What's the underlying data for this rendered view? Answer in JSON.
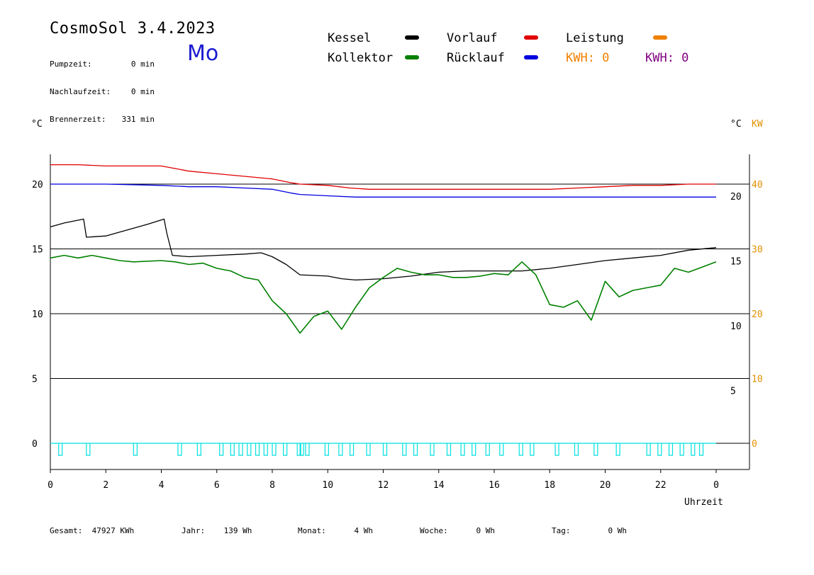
{
  "header": {
    "title": "CosmoSol 3.4.2023",
    "weekday": "Mo",
    "stats": [
      {
        "label": "Pumpzeit:",
        "value": "0 min"
      },
      {
        "label": "Nachlaufzeit:",
        "value": "0 min"
      },
      {
        "label": "Brennerzeit:",
        "value": "331 min"
      }
    ]
  },
  "legend": {
    "kessel": "Kessel",
    "kollektor": "Kollektor",
    "vorlauf": "Vorlauf",
    "ruecklauf": "Rücklauf",
    "leistung": "Leistung",
    "kwh1": "KWH: 0",
    "kwh2": "KWH: 0"
  },
  "colors": {
    "kessel": "#000000",
    "kollektor": "#008000",
    "vorlauf": "#e00000",
    "ruecklauf": "#0000e0",
    "leistung": "#f08000",
    "kwh2": "#800080",
    "pump": "#00e0e0",
    "orange_axis": "#e09000"
  },
  "axis": {
    "left_unit": "°C",
    "right_unit": "°C",
    "right_unit2": "KW",
    "xlabel": "Uhrzeit"
  },
  "footer": {
    "gesamt_label": "Gesamt:",
    "gesamt_value": "47927 KWh",
    "jahr_label": "Jahr:",
    "jahr_value": "139 Wh",
    "monat_label": "Monat:",
    "monat_value": "4 Wh",
    "woche_label": "Woche:",
    "woche_value": "0 Wh",
    "tag_label": "Tag:",
    "tag_value": "0 Wh"
  },
  "chart_data": {
    "type": "line",
    "x_ticks": [
      "0",
      "2",
      "4",
      "6",
      "8",
      "10",
      "12",
      "14",
      "16",
      "18",
      "20",
      "22",
      "0"
    ],
    "y_left_ticks": [
      "0",
      "5",
      "10",
      "15",
      "20"
    ],
    "y_right_ticks": [
      "5",
      "10",
      "15",
      "20"
    ],
    "y_right2_ticks": [
      "0",
      "10",
      "20",
      "30",
      "40"
    ],
    "xlim": [
      0,
      24
    ],
    "ylim": [
      -2,
      23
    ],
    "grid": "horizontal",
    "series": [
      {
        "name": "Vorlauf",
        "color": "#e00000",
        "x": [
          0,
          1,
          2,
          3,
          4,
          4.5,
          5,
          6,
          7,
          8,
          8.7,
          9,
          10,
          10.8,
          11.5,
          12,
          13,
          14,
          15,
          16,
          17,
          18,
          19,
          20,
          21,
          22,
          23,
          24
        ],
        "y": [
          21.5,
          21.5,
          21.4,
          21.4,
          21.4,
          21.2,
          21.0,
          20.8,
          20.6,
          20.4,
          20.1,
          20.0,
          19.9,
          19.7,
          19.6,
          19.6,
          19.6,
          19.6,
          19.6,
          19.6,
          19.6,
          19.6,
          19.7,
          19.8,
          19.9,
          19.9,
          20.0,
          20.0
        ]
      },
      {
        "name": "Rücklauf",
        "color": "#0000e0",
        "x": [
          0,
          2,
          4,
          5,
          6,
          7,
          8,
          8.7,
          9,
          10,
          11,
          12,
          14,
          16,
          18,
          20,
          22,
          24
        ],
        "y": [
          20.0,
          20.0,
          19.9,
          19.8,
          19.8,
          19.7,
          19.6,
          19.3,
          19.2,
          19.1,
          19.0,
          19.0,
          19.0,
          19.0,
          19.0,
          19.0,
          19.0,
          19.0
        ]
      },
      {
        "name": "Kessel",
        "color": "#000000",
        "x": [
          0,
          0.5,
          1.2,
          1.3,
          2,
          2.5,
          3,
          3.5,
          4.1,
          4.2,
          4.4,
          5,
          6,
          7,
          7.6,
          8,
          8.5,
          9,
          10,
          10.5,
          11,
          12,
          13,
          14,
          15,
          16,
          17,
          18,
          19,
          20,
          21,
          22,
          23,
          24
        ],
        "y": [
          16.7,
          17.0,
          17.3,
          15.9,
          16.0,
          16.3,
          16.6,
          16.9,
          17.3,
          16.2,
          14.5,
          14.4,
          14.5,
          14.6,
          14.7,
          14.4,
          13.8,
          13.0,
          12.9,
          12.7,
          12.6,
          12.7,
          12.9,
          13.2,
          13.3,
          13.3,
          13.3,
          13.5,
          13.8,
          14.1,
          14.3,
          14.5,
          14.9,
          15.1
        ]
      },
      {
        "name": "Kollektor",
        "color": "#008000",
        "x": [
          0,
          0.5,
          1,
          1.5,
          2,
          2.5,
          3,
          4,
          4.5,
          5,
          5.5,
          6,
          6.5,
          7,
          7.5,
          8,
          8.5,
          9,
          9.5,
          10,
          10.5,
          11,
          11.5,
          12,
          12.5,
          13,
          13.5,
          14,
          14.5,
          15,
          15.5,
          16,
          16.5,
          17,
          17.5,
          18,
          18.5,
          19,
          19.5,
          20,
          20.5,
          21,
          21.5,
          22,
          22.5,
          23,
          23.5,
          24
        ],
        "y": [
          14.3,
          14.5,
          14.3,
          14.5,
          14.3,
          14.1,
          14.0,
          14.1,
          14.0,
          13.8,
          13.9,
          13.5,
          13.3,
          12.8,
          12.6,
          11.0,
          10.0,
          8.5,
          9.8,
          10.2,
          8.8,
          10.5,
          12.0,
          12.8,
          13.5,
          13.2,
          13.0,
          13.0,
          12.8,
          12.8,
          12.9,
          13.1,
          13.0,
          14.0,
          13.0,
          10.7,
          10.5,
          11.0,
          9.5,
          12.5,
          11.3,
          11.8,
          12.0,
          12.2,
          13.5,
          13.2,
          13.6,
          14.0
        ]
      }
    ],
    "pump_events": [
      0.3,
      1.3,
      3.0,
      4.6,
      5.3,
      6.1,
      6.5,
      6.8,
      7.1,
      7.4,
      7.7,
      8.0,
      8.4,
      8.9,
      9.0,
      9.2,
      9.9,
      10.4,
      10.8,
      11.4,
      12.0,
      12.7,
      13.1,
      13.7,
      14.3,
      14.8,
      15.2,
      15.7,
      16.2,
      16.9,
      17.3,
      18.2,
      18.9,
      19.6,
      20.4,
      21.5,
      21.9,
      22.3,
      22.7,
      23.1,
      23.4
    ]
  }
}
